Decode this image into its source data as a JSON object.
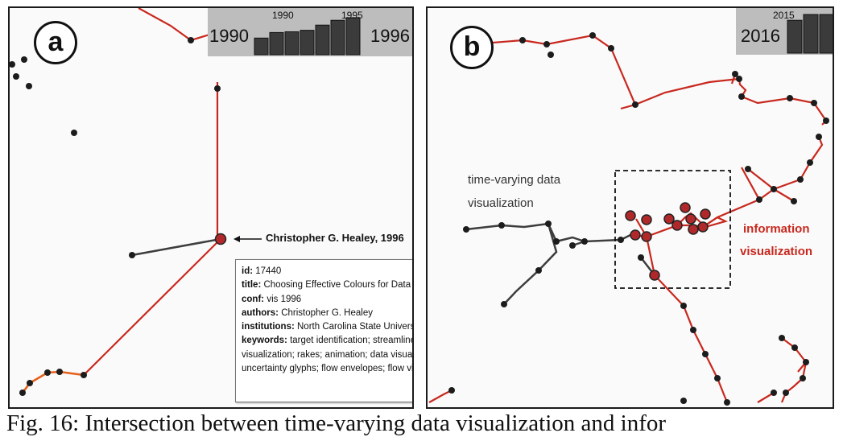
{
  "panel_a": {
    "label": "a",
    "timeline": {
      "start_year": "1990",
      "end_year": "1996",
      "tick_start": "1990",
      "tick_end": "1995",
      "bar_levels": [
        0.45,
        0.6,
        0.62,
        0.66,
        0.8,
        0.93,
        1.0
      ]
    },
    "node_annotation": "Christopher G. Healey, 1996",
    "tooltip": {
      "id_label": "id:",
      "id_value": "17440",
      "title_label": "title:",
      "title_value": "Choosing Effective Colours for Data Visualization",
      "conf_label": "conf:",
      "conf_value": "vis 1996",
      "authors_label": "authors:",
      "authors_value": "Christopher G. Healey",
      "institutions_label": "institutions:",
      "institutions_value": "North Carolina State University",
      "keywords_label": "keywords:",
      "keywords_value_1": "target identification; streamlines; data",
      "keywords_value_2": "visualization; rakes; animation; data visualization;",
      "keywords_value_3": "uncertainty glyphs; flow envelopes; flow visualization"
    }
  },
  "panel_b": {
    "label": "b",
    "timeline": {
      "end_year": "2016",
      "tick": "2015",
      "bar_levels": [
        0.85,
        1.0,
        1.0
      ]
    },
    "label_gray_1": "time-varying data",
    "label_gray_2": "visualization",
    "label_red_1": "information",
    "label_red_2": "visualization"
  },
  "caption": "Fig. 16: Intersection between time-varying data visualization and infor",
  "colors": {
    "red_edge": "#c8281e",
    "orange_edge": "#e5601a",
    "gray_edge": "#3d3d3d",
    "node": "#1c1c1c",
    "red_node": "#b0282a"
  }
}
